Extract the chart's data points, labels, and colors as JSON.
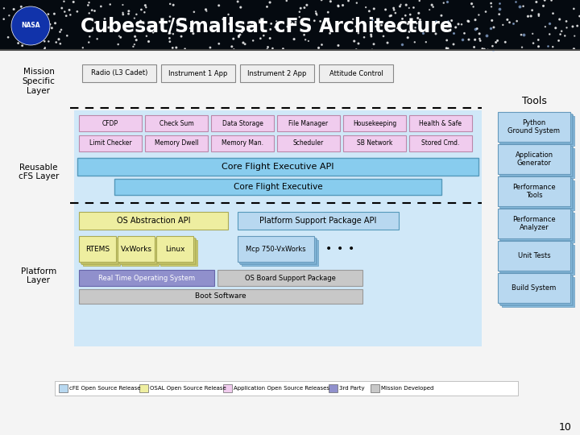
{
  "title": "Cubesat/Smallsat cFS Architecture",
  "bg_color": "#f0f0f0",
  "header_bg": "#050a10",
  "header_text_color": "#ffffff",
  "page_number": "10",
  "mission_specific_label": "Mission\nSpecific\nLayer",
  "reusable_label": "Reusable\ncFS Layer",
  "platform_label": "Platform\nLayer",
  "mission_boxes": [
    "Radio (L3 Cadet)",
    "Instrument 1 App",
    "Instrument 2 App",
    "Attitude Control"
  ],
  "mission_box_color": "#eeeeee",
  "mission_box_edge": "#888888",
  "tools_title": "Tools",
  "tools_boxes": [
    "Python\nGround System",
    "Application\nGenerator",
    "Performance\nTools",
    "Performance\nAnalyzer",
    "Unit Tests",
    "Build System"
  ],
  "tools_box_color": "#b8d8f0",
  "tools_box_edge": "#6699bb",
  "tools_3d_color": "#88bbdd",
  "reusable_row1": [
    "CFDP",
    "Check Sum",
    "Data Storage",
    "File Manager",
    "Housekeeping",
    "Health & Safe"
  ],
  "reusable_row2": [
    "Limit Checker",
    "Memory Dwell",
    "Memory Man.",
    "Scheduler",
    "SB Network",
    "Stored Cmd."
  ],
  "reusable_row_color": "#f0ccee",
  "reusable_row_edge": "#bb88aa",
  "cfe_api_label": "Core Flight Executive API",
  "cfe_api_color": "#88ccee",
  "cfe_label": "Core Flight Executive",
  "cfe_color": "#88ccee",
  "reusable_bg_color": "#d0e8f8",
  "os_api_label": "OS Abstraction API",
  "psp_api_label": "Platform Support Package API",
  "os_api_color": "#eeeea0",
  "psp_api_color": "#b8d8f0",
  "os_boxes": [
    "RTEMS",
    "VxWorks",
    "Linux"
  ],
  "os_box_color": "#eeeea0",
  "os_box_3d_color": "#cccc70",
  "os_box_edge": "#aaaa55",
  "psp_box_label": "Mcp 750-VxWorks",
  "psp_box_color": "#b8d8f0",
  "psp_box_3d_color": "#88bbdd",
  "psp_box_edge": "#6699bb",
  "platform_bg_color": "#d0e8f8",
  "rtos_label": "Real Time Operating System",
  "rtos_color": "#9090cc",
  "rtos_edge": "#6666aa",
  "bsp_label": "OS Board Support Package",
  "bsp_color": "#c8c8c8",
  "bsp_edge": "#999999",
  "boot_label": "Boot Software",
  "boot_color": "#c8c8c8",
  "boot_edge": "#999999",
  "legend_items": [
    {
      "label": "cFE Open Source Release",
      "color": "#b8d8f0"
    },
    {
      "label": "OSAL Open Source Release",
      "color": "#eeeea0"
    },
    {
      "label": "Application Open Source Releases",
      "color": "#f0ccee"
    },
    {
      "label": "3rd Party",
      "color": "#9090cc"
    },
    {
      "label": "Mission Developed",
      "color": "#c8c8c8"
    }
  ]
}
